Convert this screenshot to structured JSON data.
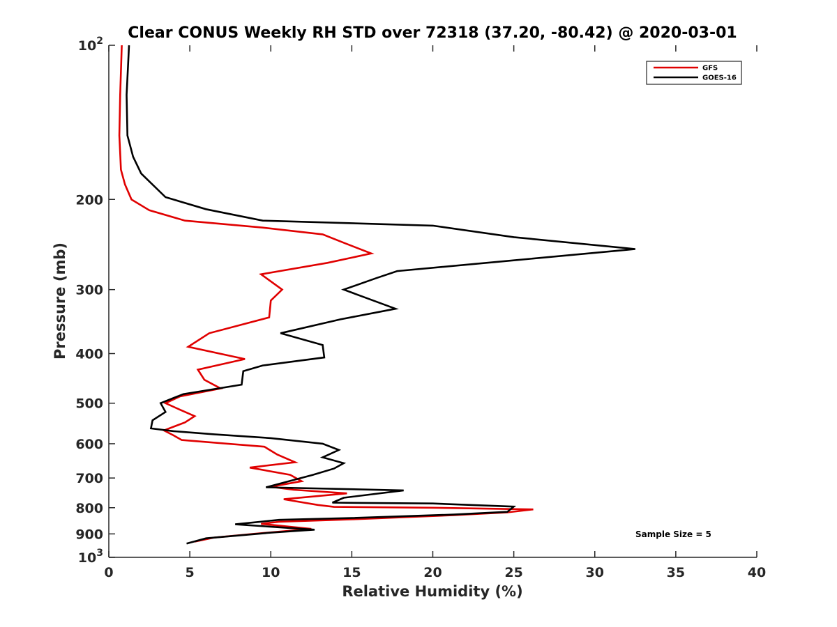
{
  "chart_data": {
    "type": "line",
    "title": "Clear CONUS Weekly RH STD over 72318 (37.20, -80.42) @ 2020-03-01",
    "xlabel": "Relative Humidity (%)",
    "ylabel": "Pressure (mb)",
    "xlim": [
      0,
      40
    ],
    "ylim": [
      100,
      1000
    ],
    "y_scale": "log",
    "y_reversed": true,
    "x_ticks": [
      0,
      5,
      10,
      15,
      20,
      25,
      30,
      35,
      40
    ],
    "x_tick_labels": [
      "0",
      "5",
      "10",
      "15",
      "20",
      "25",
      "30",
      "35",
      "40"
    ],
    "y_ticks": [
      100,
      200,
      300,
      400,
      500,
      600,
      700,
      800,
      900,
      1000
    ],
    "y_tick_labels": [
      {
        "base": "10",
        "exp": "2"
      },
      {
        "base": "200",
        "exp": ""
      },
      {
        "base": "300",
        "exp": ""
      },
      {
        "base": "400",
        "exp": ""
      },
      {
        "base": "500",
        "exp": ""
      },
      {
        "base": "600",
        "exp": ""
      },
      {
        "base": "700",
        "exp": ""
      },
      {
        "base": "800",
        "exp": ""
      },
      {
        "base": "900",
        "exp": ""
      },
      {
        "base": "10",
        "exp": "3"
      }
    ],
    "grid": false,
    "legend_position": "top-right",
    "annotation": "Sample Size = 5",
    "series": [
      {
        "name": "GFS",
        "color": "#e00000",
        "points": [
          [
            0.8,
            100
          ],
          [
            0.7,
            125
          ],
          [
            0.65,
            150
          ],
          [
            0.75,
            175
          ],
          [
            1.0,
            187
          ],
          [
            1.4,
            200
          ],
          [
            2.5,
            210
          ],
          [
            4.7,
            220
          ],
          [
            9.5,
            227
          ],
          [
            13.2,
            234
          ],
          [
            14.5,
            243
          ],
          [
            16.2,
            255
          ],
          [
            13.5,
            266
          ],
          [
            9.4,
            280
          ],
          [
            10.7,
            300
          ],
          [
            10.0,
            315
          ],
          [
            9.9,
            340
          ],
          [
            6.2,
            365
          ],
          [
            4.9,
            388
          ],
          [
            8.4,
            410
          ],
          [
            5.5,
            430
          ],
          [
            5.9,
            450
          ],
          [
            6.9,
            468
          ],
          [
            4.4,
            485
          ],
          [
            3.5,
            500
          ],
          [
            4.4,
            515
          ],
          [
            5.3,
            530
          ],
          [
            4.7,
            545
          ],
          [
            3.4,
            565
          ],
          [
            4.0,
            578
          ],
          [
            4.5,
            590
          ],
          [
            9.6,
            608
          ],
          [
            10.4,
            630
          ],
          [
            11.5,
            652
          ],
          [
            8.7,
            668
          ],
          [
            11.2,
            690
          ],
          [
            11.9,
            710
          ],
          [
            10.0,
            728
          ],
          [
            11.4,
            738
          ],
          [
            14.7,
            750
          ],
          [
            10.8,
            770
          ],
          [
            12.9,
            790
          ],
          [
            13.9,
            797
          ],
          [
            20.0,
            800
          ],
          [
            26.2,
            806
          ],
          [
            24.6,
            817
          ],
          [
            21.3,
            827
          ],
          [
            15.0,
            843
          ],
          [
            10.5,
            852
          ],
          [
            9.4,
            860
          ],
          [
            12.5,
            880
          ],
          [
            8.9,
            900
          ],
          [
            6.5,
            915
          ],
          [
            5.3,
            932
          ]
        ]
      },
      {
        "name": "GOES-16",
        "color": "#000000",
        "points": [
          [
            1.25,
            100
          ],
          [
            1.1,
            125
          ],
          [
            1.15,
            150
          ],
          [
            1.5,
            165
          ],
          [
            2.0,
            178
          ],
          [
            3.5,
            198
          ],
          [
            6.0,
            209
          ],
          [
            9.5,
            220
          ],
          [
            20.0,
            225
          ],
          [
            25.0,
            237
          ],
          [
            32.5,
            250
          ],
          [
            25.0,
            263
          ],
          [
            17.8,
            276
          ],
          [
            16.5,
            285
          ],
          [
            14.5,
            300
          ],
          [
            17.7,
            327
          ],
          [
            14.3,
            343
          ],
          [
            10.6,
            365
          ],
          [
            13.2,
            385
          ],
          [
            13.3,
            407
          ],
          [
            9.5,
            422
          ],
          [
            8.3,
            433
          ],
          [
            8.2,
            460
          ],
          [
            4.6,
            480
          ],
          [
            3.2,
            500
          ],
          [
            3.5,
            520
          ],
          [
            2.7,
            540
          ],
          [
            2.6,
            560
          ],
          [
            4.0,
            567
          ],
          [
            6.5,
            575
          ],
          [
            10.0,
            585
          ],
          [
            13.2,
            600
          ],
          [
            14.2,
            617
          ],
          [
            13.2,
            638
          ],
          [
            14.5,
            655
          ],
          [
            13.9,
            671
          ],
          [
            12.6,
            690
          ],
          [
            9.7,
            730
          ],
          [
            18.2,
            740
          ],
          [
            14.5,
            765
          ],
          [
            13.8,
            782
          ],
          [
            20.0,
            785
          ],
          [
            25.0,
            796
          ],
          [
            24.6,
            815
          ],
          [
            21.3,
            825
          ],
          [
            15.0,
            838
          ],
          [
            10.5,
            845
          ],
          [
            7.8,
            862
          ],
          [
            12.7,
            883
          ],
          [
            10.0,
            895
          ],
          [
            6.0,
            918
          ],
          [
            4.8,
            940
          ]
        ]
      }
    ]
  }
}
